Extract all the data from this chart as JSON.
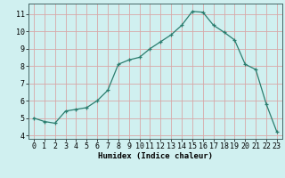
{
  "x": [
    0,
    1,
    2,
    3,
    4,
    5,
    6,
    7,
    8,
    9,
    10,
    11,
    12,
    13,
    14,
    15,
    16,
    17,
    18,
    19,
    20,
    21,
    22,
    23
  ],
  "y": [
    5.0,
    4.8,
    4.7,
    5.4,
    5.5,
    5.6,
    6.0,
    6.6,
    8.1,
    8.35,
    8.5,
    9.0,
    9.4,
    9.8,
    10.35,
    11.15,
    11.1,
    10.35,
    9.95,
    9.5,
    8.1,
    7.8,
    5.8,
    4.2
  ],
  "line_color": "#2a7d6e",
  "bg_color": "#d0f0f0",
  "grid_color": "#d8a8a8",
  "xlabel": "Humidex (Indice chaleur)",
  "ylim": [
    3.8,
    11.6
  ],
  "xlim": [
    -0.5,
    23.5
  ],
  "yticks": [
    4,
    5,
    6,
    7,
    8,
    9,
    10,
    11
  ],
  "xticks": [
    0,
    1,
    2,
    3,
    4,
    5,
    6,
    7,
    8,
    9,
    10,
    11,
    12,
    13,
    14,
    15,
    16,
    17,
    18,
    19,
    20,
    21,
    22,
    23
  ],
  "xlabel_fontsize": 6.5,
  "tick_fontsize": 6.0,
  "line_width": 0.9,
  "marker_size": 3.5
}
